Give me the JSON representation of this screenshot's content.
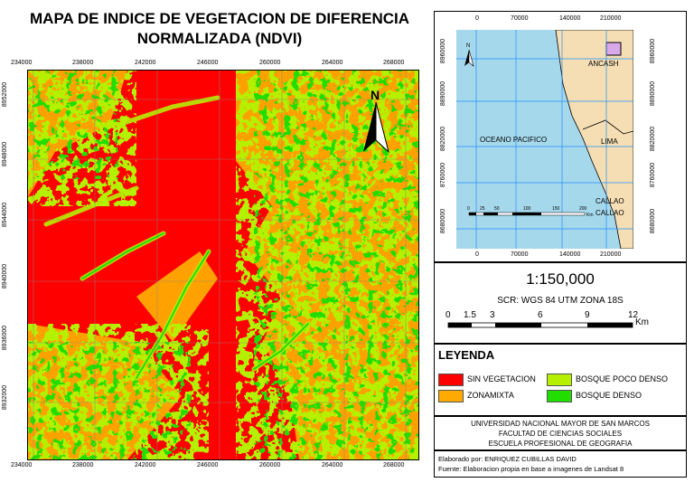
{
  "title": {
    "line1": "MAPA DE INDICE DE VEGETACION DE DIFERENCIA",
    "line2": "NORMALIZADA (NDVI)"
  },
  "main_map": {
    "x_ticks": [
      "234000",
      "238000",
      "242000",
      "246000",
      "260000",
      "264000",
      "268000"
    ],
    "y_ticks": [
      "8952000",
      "8948000",
      "8944000",
      "8940000",
      "8936000",
      "8932000"
    ],
    "north_label": "N"
  },
  "inset_map": {
    "x_ticks": [
      "0",
      "70000",
      "140000",
      "210000"
    ],
    "y_ticks": [
      "8960000",
      "8890000",
      "8820000",
      "8760000",
      "8680000"
    ],
    "labels": {
      "ocean": "OCEANO PACIFICO",
      "ancash": "ANCASH",
      "lima": "LIMA",
      "callao1": "CALLAO",
      "callao2": "CALLAO"
    },
    "scale_ticks": [
      "0",
      "25",
      "50",
      "100",
      "150",
      "200"
    ],
    "scale_unit": "Km",
    "north_label": "N",
    "colors": {
      "ocean": "#a6d8ec",
      "land": "#f5deb3",
      "grid": "#1e90ff",
      "aoi": "#d8a8e8"
    }
  },
  "scale": {
    "ratio": "1:150,000",
    "srs": "SCR: WGS 84 UTM  ZONA 18S",
    "ticks": [
      "0",
      "1.5",
      "3",
      "6",
      "9",
      "12"
    ],
    "unit": "Km"
  },
  "legend": {
    "title": "LEYENDA",
    "items": [
      {
        "label": "SIN VEGETACION",
        "color": "#ff0000"
      },
      {
        "label": "BOSQUE POCO DENSO",
        "color": "#b5f000"
      },
      {
        "label": "ZONAMIXTA",
        "color": "#ffaa00"
      },
      {
        "label": "BOSQUE DENSO",
        "color": "#22dd00"
      }
    ]
  },
  "institution": {
    "line1": "UNIVERSIDAD NACIONAL MAYOR DE SAN MARCOS",
    "line2": "FACULTAD DE CIENCIAS SOCIALES",
    "line3": "ESCUELA PROFESIONAL DE GEOGRAFIA"
  },
  "credits": {
    "author": "Elaborado por:  ENRIQUEZ CUBILLAS DAVID",
    "source": "Fuente: Elaboracion propia en base a imagenes de Landsat 8"
  }
}
